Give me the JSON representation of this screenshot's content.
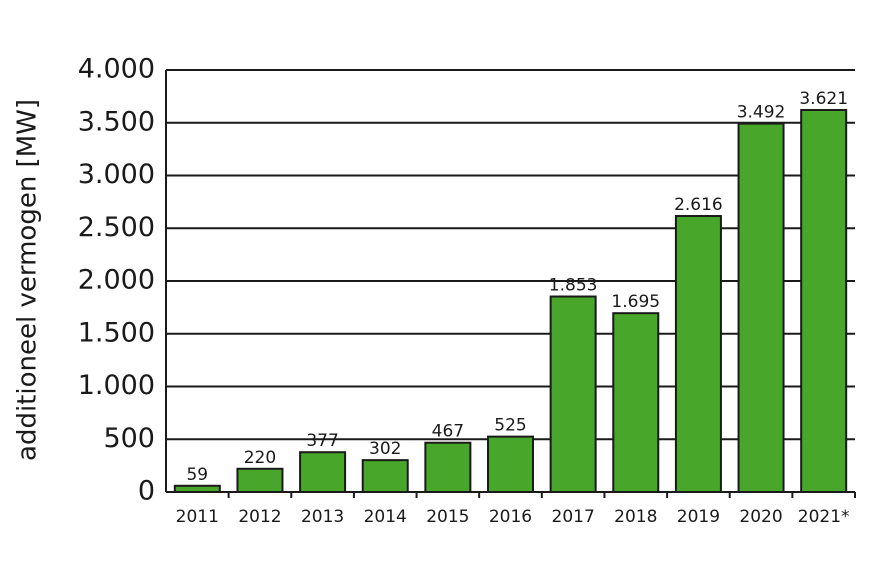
{
  "chart_data": {
    "type": "bar",
    "y_label": "additioneel vermogen [MW]",
    "categories": [
      "2011",
      "2012",
      "2013",
      "2014",
      "2015",
      "2016",
      "2017",
      "2018",
      "2019",
      "2020",
      "2021*"
    ],
    "values": [
      59,
      220,
      377,
      302,
      467,
      525,
      1853,
      1695,
      2616,
      3492,
      3621
    ],
    "value_labels": [
      "59",
      "220",
      "377",
      "302",
      "467",
      "525",
      "1.853",
      "1.695",
      "2.616",
      "3.492",
      "3.621"
    ],
    "color": "#48a62a",
    "ylim": [
      0,
      4000
    ],
    "yticks": [
      0,
      500,
      {
        "value": 1000,
        "label": "1.000"
      },
      {
        "value": 1500,
        "label": "1.500"
      },
      {
        "value": 2000,
        "label": "2.000"
      },
      {
        "value": 2500,
        "label": "2.500"
      },
      {
        "value": 3000,
        "label": "3.000"
      },
      {
        "value": 3500,
        "label": "3.500"
      },
      {
        "value": 4000,
        "label": "4.000"
      }
    ],
    "grid": true
  }
}
